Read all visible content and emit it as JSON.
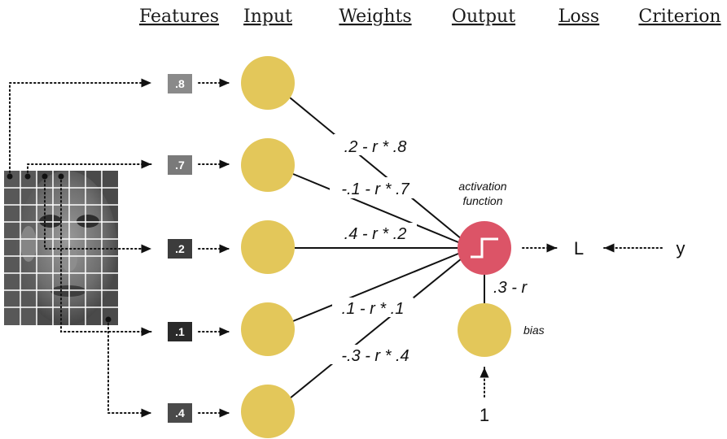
{
  "headers": [
    "Features",
    "Input",
    "Weights",
    "Output",
    "Loss",
    "Criterion"
  ],
  "features": [
    ".8",
    ".7",
    ".2",
    ".1",
    ".4"
  ],
  "feature_colors": [
    "#8a8a8a",
    "#7a7a7a",
    "#3c3c3c",
    "#2a2a2a",
    "#4a4a4a"
  ],
  "weights": [
    ".2 - r * .8",
    "-.1 - r * .7",
    ".4 - r * .2",
    ".1 - r * .1",
    "-.3 - r * .4"
  ],
  "activation_label_line1": "activation",
  "activation_label_line2": "function",
  "bias_label": "bias",
  "bias_weight": ".3 - r",
  "bias_input": "1",
  "loss_symbol": "L",
  "target_symbol": "y",
  "colors": {
    "input_node": "#e3c75a",
    "output_node": "#dc5467"
  }
}
